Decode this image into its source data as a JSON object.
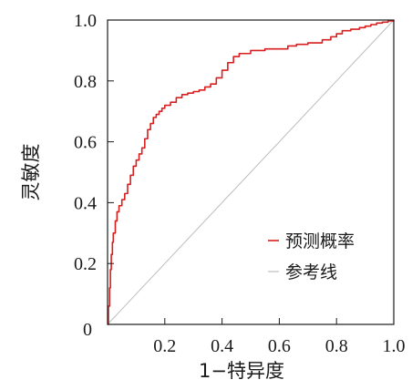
{
  "chart_data": {
    "type": "line",
    "xlabel": "1−特异度",
    "ylabel": "灵敏度",
    "xlim": [
      0,
      1
    ],
    "ylim": [
      0,
      1
    ],
    "origin_label": "0",
    "x_ticks": [
      "0.2",
      "0.4",
      "0.6",
      "0.8",
      "1.0"
    ],
    "x_tick_values": [
      0.2,
      0.4,
      0.6,
      0.8,
      1.0
    ],
    "y_ticks": [
      "0.2",
      "0.4",
      "0.6",
      "0.8",
      "1.0"
    ],
    "y_tick_values": [
      0.2,
      0.4,
      0.6,
      0.8,
      1.0
    ],
    "legend_position": "lower-right",
    "colors": {
      "roc": "#d81e1e",
      "reference": "#bdbdbd",
      "frame": "#1a1a1a"
    },
    "series": [
      {
        "name": "预测概率",
        "type": "step",
        "x": [
          0.0,
          0.003,
          0.007,
          0.01,
          0.013,
          0.017,
          0.02,
          0.027,
          0.033,
          0.04,
          0.05,
          0.06,
          0.07,
          0.08,
          0.09,
          0.1,
          0.11,
          0.12,
          0.13,
          0.14,
          0.15,
          0.16,
          0.17,
          0.18,
          0.19,
          0.2,
          0.22,
          0.24,
          0.26,
          0.28,
          0.3,
          0.32,
          0.34,
          0.36,
          0.38,
          0.4,
          0.42,
          0.44,
          0.46,
          0.5,
          0.55,
          0.6,
          0.63,
          0.66,
          0.7,
          0.75,
          0.78,
          0.8,
          0.82,
          0.85,
          0.88,
          0.9,
          0.92,
          0.94,
          0.96,
          0.98,
          1.0
        ],
        "y": [
          0.0,
          0.06,
          0.12,
          0.18,
          0.23,
          0.27,
          0.3,
          0.34,
          0.37,
          0.39,
          0.41,
          0.43,
          0.46,
          0.49,
          0.52,
          0.54,
          0.56,
          0.58,
          0.61,
          0.64,
          0.66,
          0.68,
          0.69,
          0.7,
          0.71,
          0.72,
          0.73,
          0.745,
          0.755,
          0.76,
          0.765,
          0.77,
          0.78,
          0.79,
          0.81,
          0.835,
          0.86,
          0.88,
          0.89,
          0.9,
          0.905,
          0.905,
          0.915,
          0.92,
          0.925,
          0.935,
          0.945,
          0.955,
          0.965,
          0.97,
          0.975,
          0.98,
          0.985,
          0.99,
          0.993,
          0.997,
          1.0
        ]
      },
      {
        "name": "参考线",
        "type": "line",
        "x": [
          0,
          1
        ],
        "y": [
          0,
          1
        ]
      }
    ]
  }
}
